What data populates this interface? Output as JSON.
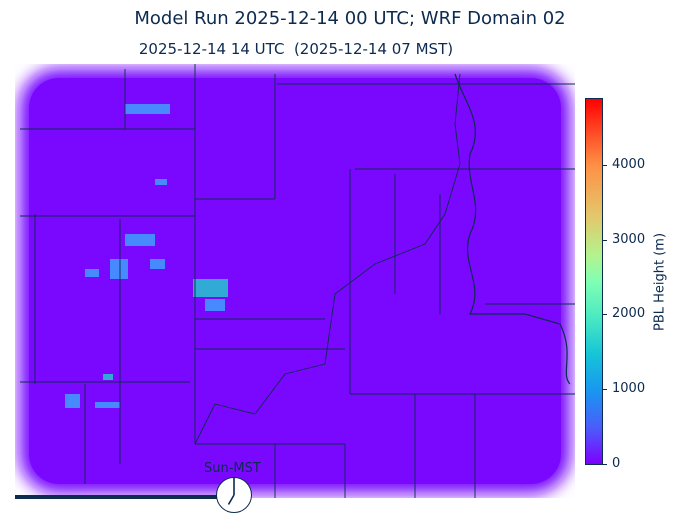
{
  "title": "Model Run 2025-12-14 00 UTC; WRF Domain 02",
  "subtitle": "2025-12-14 14 UTC  (2025-12-14 07 MST)",
  "colorbar": {
    "label": "PBL Height (m)",
    "colormap": "rainbow",
    "min": 0,
    "max": 4900,
    "ticks": [
      "0",
      "1000",
      "2000",
      "3000",
      "4000"
    ]
  },
  "clock": {
    "label": "Sun-MST",
    "hour": 7
  },
  "animation_progress": 0.36,
  "colors": {
    "field_base": "#7f00ff",
    "text": "#0d2a4f"
  }
}
